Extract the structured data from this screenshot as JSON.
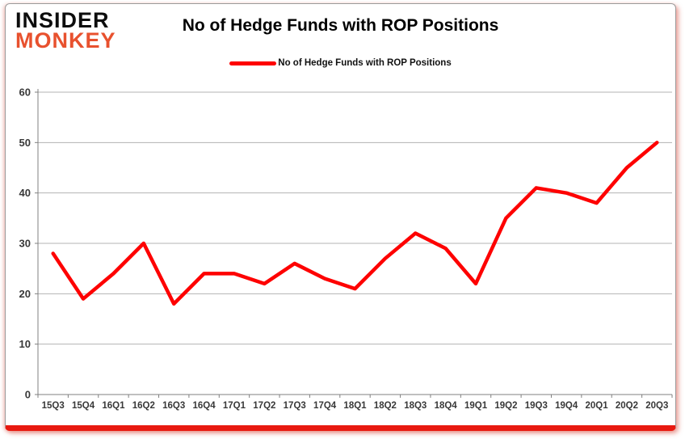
{
  "header": {
    "title": "No of Hedge Funds with ROP Positions"
  },
  "logo": {
    "line1": "INSIDER",
    "line2": "MONKEY"
  },
  "legend": {
    "label": "No of Hedge Funds with ROP Positions"
  },
  "colors": {
    "line_red": "#fe0000",
    "logo_red": "#e8512e",
    "grid_gray": "#b3b3b3",
    "axis_gray": "#808080",
    "bottom_bar_red": "#e81910",
    "label_color": "#383838"
  },
  "chart_data": {
    "type": "line",
    "title": "No of Hedge Funds with ROP Positions",
    "legend_entries": [
      "No of Hedge Funds with ROP Positions"
    ],
    "legend_position": "top-center",
    "categories": [
      "15Q3",
      "15Q4",
      "16Q1",
      "16Q2",
      "16Q3",
      "16Q4",
      "17Q1",
      "17Q2",
      "17Q3",
      "17Q4",
      "18Q1",
      "18Q2",
      "18Q3",
      "18Q4",
      "19Q1",
      "19Q2",
      "19Q3",
      "19Q4",
      "20Q1",
      "20Q2",
      "20Q3"
    ],
    "series": [
      {
        "name": "No of Hedge Funds with ROP Positions",
        "values": [
          28,
          19,
          24,
          30,
          18,
          24,
          24,
          22,
          26,
          23,
          21,
          27,
          32,
          29,
          22,
          35,
          41,
          40,
          38,
          45,
          50
        ]
      }
    ],
    "xlabel": "",
    "ylabel": "",
    "ylim": [
      0,
      60
    ],
    "yticks": [
      0,
      10,
      20,
      30,
      40,
      50,
      60
    ],
    "grid": true
  }
}
